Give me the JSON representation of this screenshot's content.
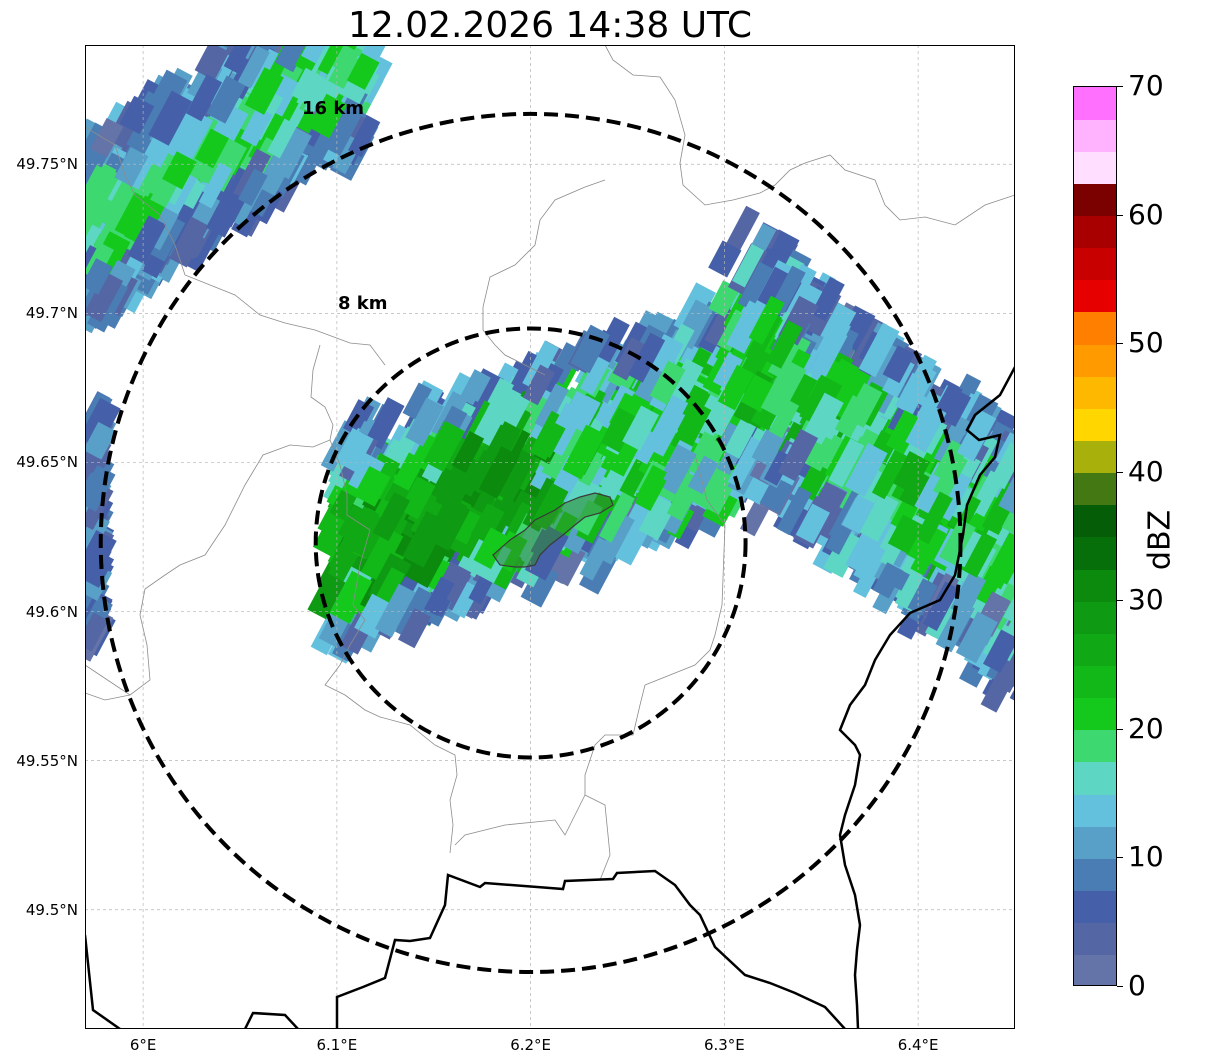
{
  "title": "12.02.2026 14:38 UTC",
  "map": {
    "lon_range": [
      5.97,
      6.45
    ],
    "lat_range": [
      49.46,
      49.79
    ],
    "center": {
      "lon": 6.2,
      "lat": 49.623
    },
    "range_rings": [
      {
        "radius_km": 8,
        "label": "8 km"
      },
      {
        "radius_km": 16,
        "label": "16 km"
      }
    ],
    "lat_ticks": [
      {
        "value": 49.75,
        "label": "49.75°N"
      },
      {
        "value": 49.7,
        "label": "49.7°N"
      },
      {
        "value": 49.65,
        "label": "49.65°N"
      },
      {
        "value": 49.6,
        "label": "49.6°N"
      },
      {
        "value": 49.55,
        "label": "49.55°N"
      },
      {
        "value": 49.5,
        "label": "49.5°N"
      }
    ],
    "lon_ticks": [
      {
        "value": 6.0,
        "label": "6°E"
      },
      {
        "value": 6.1,
        "label": "6.1°E"
      },
      {
        "value": 6.2,
        "label": "6.2°E"
      },
      {
        "value": 6.3,
        "label": "6.3°E"
      },
      {
        "value": 6.4,
        "label": "6.4°E"
      }
    ],
    "ring_color": "#000000",
    "grid": true
  },
  "colorbar": {
    "unit": "dBZ",
    "min": 0,
    "max": 70,
    "ticks": [
      "0",
      "10",
      "20",
      "30",
      "40",
      "50",
      "60",
      "70"
    ],
    "colors": [
      "#6473a8",
      "#5566a5",
      "#4560a8",
      "#4a7db3",
      "#58a0c8",
      "#64c1de",
      "#5dd6c4",
      "#3dd870",
      "#14c91b",
      "#12b718",
      "#10a815",
      "#0e9a12",
      "#0b8a0e",
      "#076f0a",
      "#065d08",
      "#437813",
      "#a8b00c",
      "#ffd600",
      "#ffb800",
      "#ff9b00",
      "#ff7f00",
      "#e60000",
      "#c90000",
      "#a80000",
      "#7b0000",
      "#ffdeff",
      "#ffb3ff",
      "#ff70ff",
      "#ef2cef"
    ]
  },
  "chart_data": {
    "type": "heatmap",
    "title": "12.02.2026 14:38 UTC",
    "xlabel": "",
    "ylabel": "",
    "xlim": [
      5.97,
      6.45
    ],
    "ylim": [
      49.46,
      49.79
    ],
    "colorbar_label": "dBZ",
    "colorbar_range": [
      0,
      70
    ],
    "echo_bands": [
      {
        "region": "central band",
        "lon": [
          6.1,
          6.31
        ],
        "lat": [
          49.58,
          49.68
        ],
        "max_dbz": 32
      },
      {
        "region": "east band",
        "lon": [
          6.3,
          6.45
        ],
        "lat": [
          49.55,
          49.72
        ],
        "max_dbz": 26
      },
      {
        "region": "north-west band",
        "lon": [
          5.97,
          6.1
        ],
        "lat": [
          49.7,
          49.79
        ],
        "max_dbz": 22
      }
    ]
  }
}
